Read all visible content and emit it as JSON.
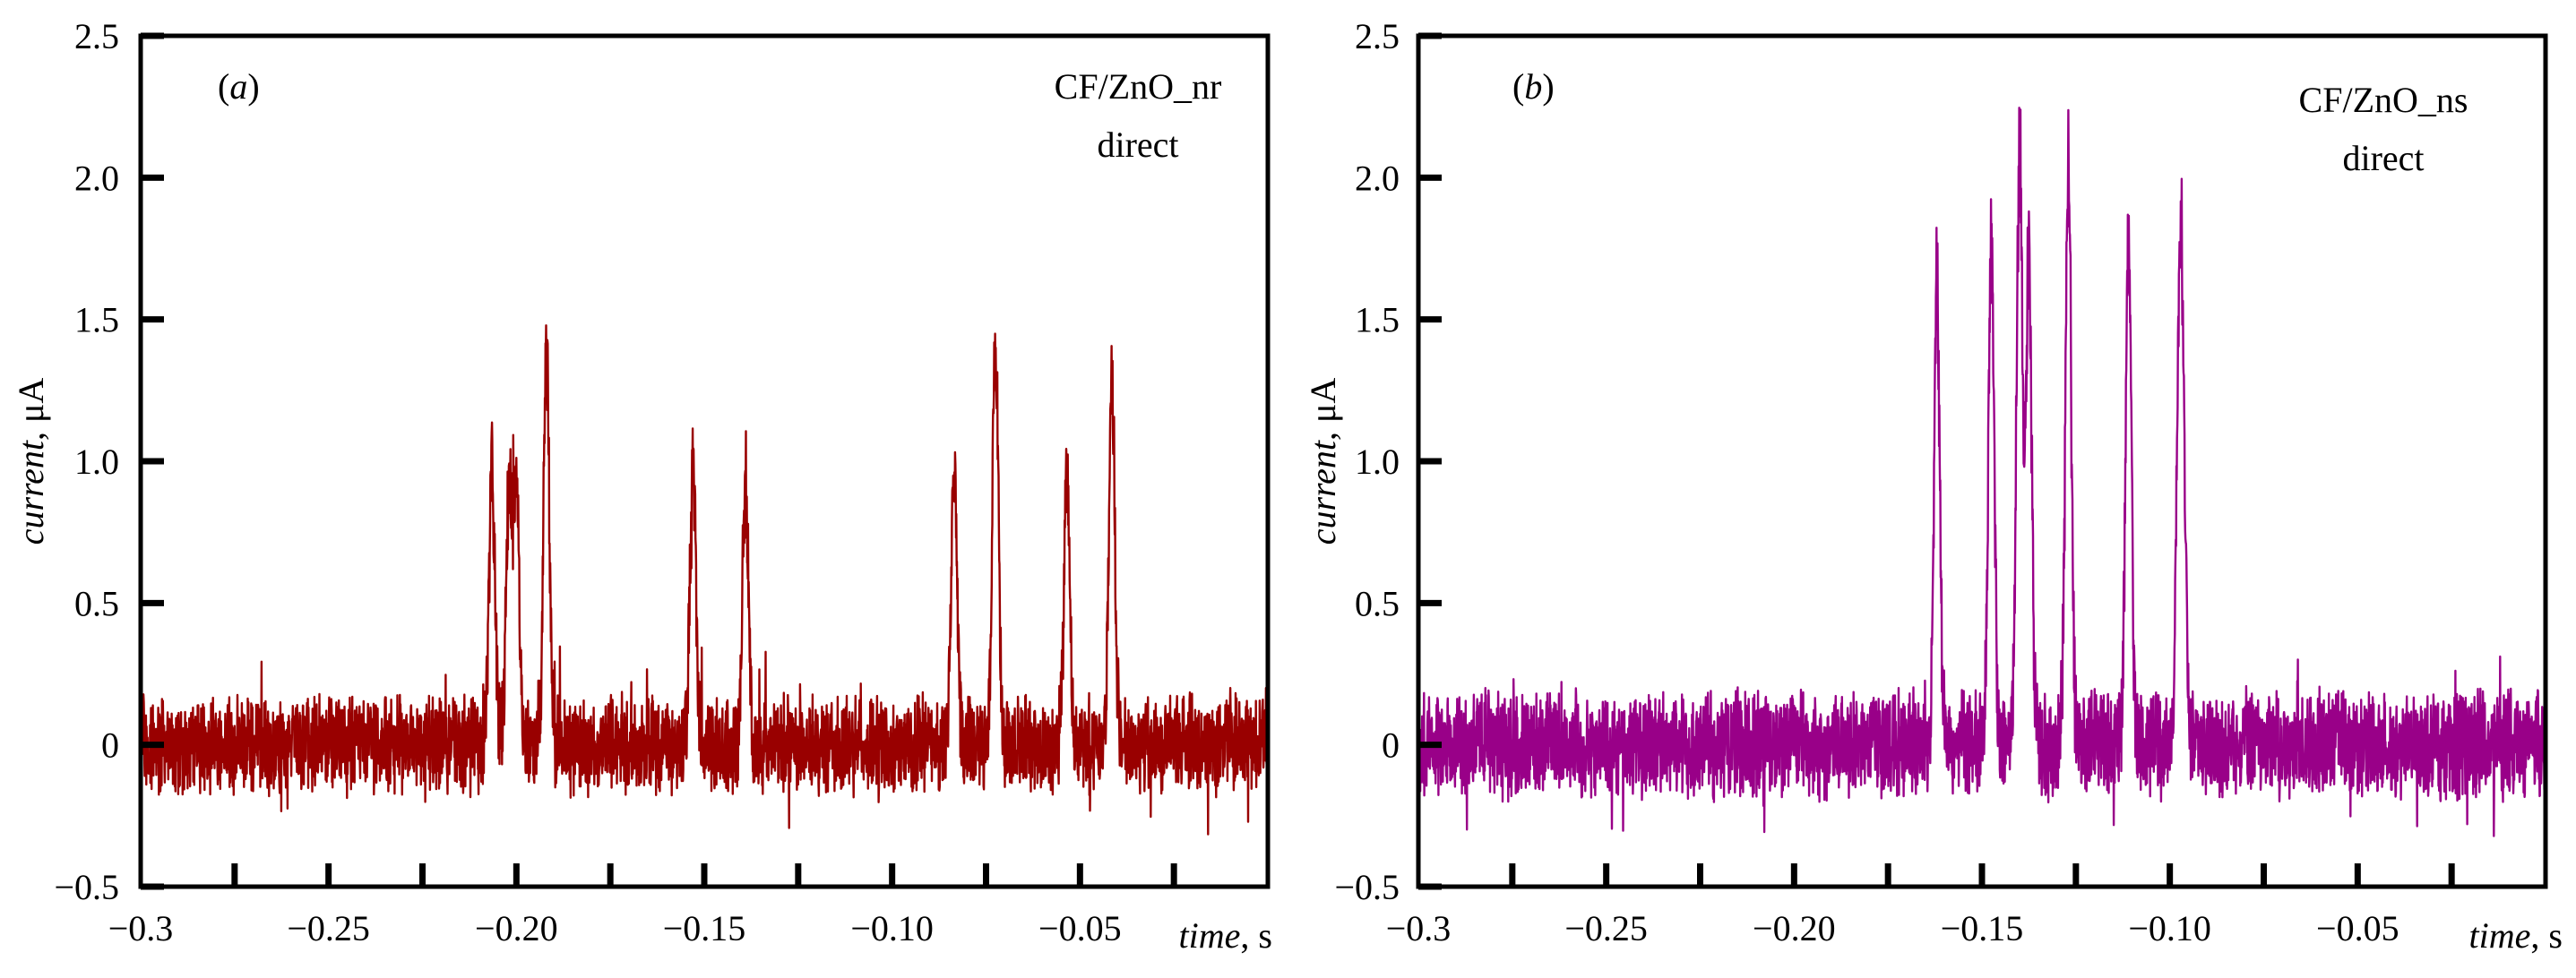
{
  "chart_data": [
    {
      "type": "line",
      "panel_label": "a",
      "annotation": [
        "CF/ZnO_nr",
        "direct"
      ],
      "xlabel": "time",
      "xunit": ", s",
      "ylabel": "current",
      "yunit": ", μA",
      "xlim": [
        -0.3,
        0.0
      ],
      "ylim": [
        -0.5,
        2.5
      ],
      "xticks": [
        -0.3,
        -0.25,
        -0.2,
        -0.15,
        -0.1,
        -0.05
      ],
      "xtick_labels": [
        "−0.3",
        "−0.25",
        "−0.20",
        "−0.15",
        "−0.10",
        "−0.05"
      ],
      "yticks": [
        -0.5,
        0,
        0.5,
        1.0,
        1.5,
        2.0,
        2.5
      ],
      "ytick_labels": [
        "−0.5",
        "0",
        "0.5",
        "1.0",
        "1.5",
        "2.0",
        "2.5"
      ],
      "color": "#990000",
      "noise_amplitude": 0.13,
      "noise_seed": 7,
      "peaks": [
        {
          "t": -0.2065,
          "height": 1.03
        },
        {
          "t": -0.202,
          "height": 0.94
        },
        {
          "t": -0.2,
          "height": 0.9
        },
        {
          "t": -0.192,
          "height": 1.47
        },
        {
          "t": -0.153,
          "height": 1.08
        },
        {
          "t": -0.139,
          "height": 0.99
        },
        {
          "t": -0.0835,
          "height": 1.07
        },
        {
          "t": -0.0725,
          "height": 1.49
        },
        {
          "t": -0.0535,
          "height": 0.98
        },
        {
          "t": -0.0415,
          "height": 1.34
        }
      ]
    },
    {
      "type": "line",
      "panel_label": "b",
      "annotation": [
        "CF/ZnO_ns",
        "direct"
      ],
      "xlabel": "time",
      "xunit": ", s",
      "ylabel": "current",
      "yunit": ", μA",
      "xlim": [
        -0.3,
        0.0
      ],
      "ylim": [
        -0.5,
        2.5
      ],
      "xticks": [
        -0.3,
        -0.25,
        -0.2,
        -0.15,
        -0.1,
        -0.05
      ],
      "xtick_labels": [
        "−0.3",
        "−0.25",
        "−0.20",
        "−0.15",
        "−0.10",
        "−0.05"
      ],
      "yticks": [
        -0.5,
        0,
        0.5,
        1.0,
        1.5,
        2.0,
        2.5
      ],
      "ytick_labels": [
        "−0.5",
        "0",
        "0.5",
        "1.0",
        "1.5",
        "2.0",
        "2.5"
      ],
      "color": "#990088",
      "noise_amplitude": 0.15,
      "noise_seed": 19,
      "peaks": [
        {
          "t": -0.162,
          "height": 1.71
        },
        {
          "t": -0.1475,
          "height": 1.84
        },
        {
          "t": -0.14,
          "height": 2.19
        },
        {
          "t": -0.1375,
          "height": 1.82
        },
        {
          "t": -0.127,
          "height": 2.16
        },
        {
          "t": -0.111,
          "height": 1.85
        },
        {
          "t": -0.0975,
          "height": 1.35
        },
        {
          "t": -0.0965,
          "height": 0.95
        }
      ]
    }
  ]
}
